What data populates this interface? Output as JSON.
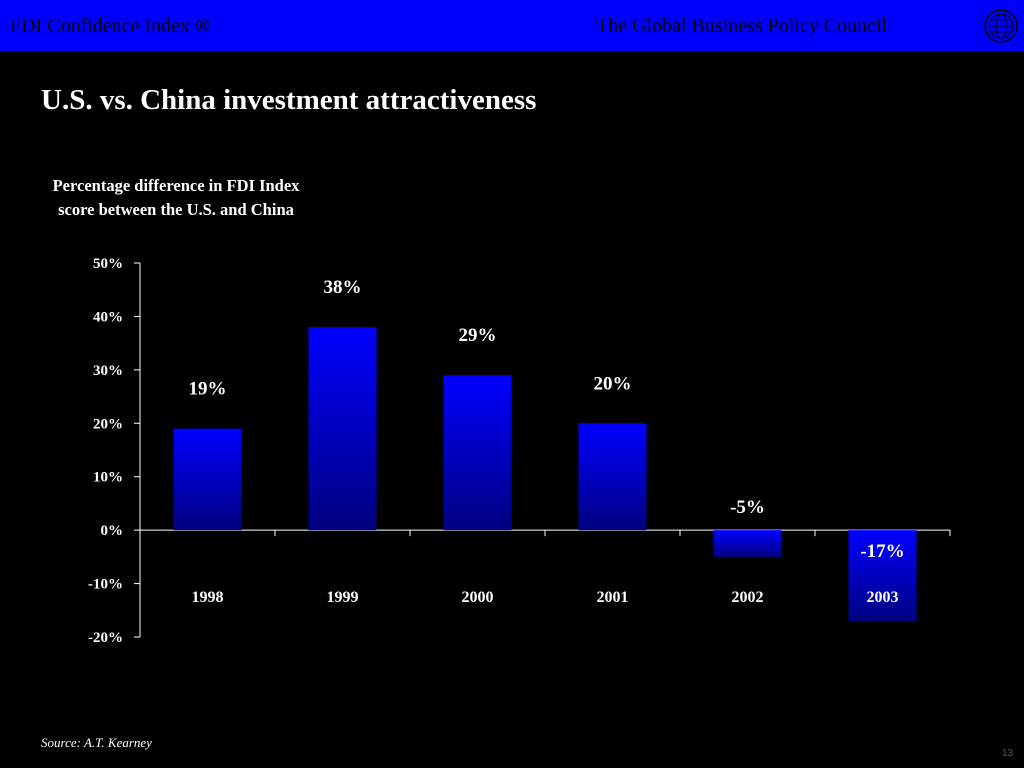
{
  "header": {
    "left_label": "FDI Confidence Index ®",
    "right_label": "The Global Business Policy Council",
    "logo_icon": "globe-seal-icon"
  },
  "slide": {
    "title": "U.S. vs. China investment attractiveness",
    "page_number": "13"
  },
  "source": "Source: A.T. Kearney",
  "colors": {
    "header_bg": "#0000ff",
    "bar_top": "#0000ff",
    "bar_bottom": "#000080",
    "background": "#000000",
    "text": "#ffffff"
  },
  "chart_data": {
    "type": "bar",
    "title": "Percentage difference in FDI Index score between the U.S. and China",
    "title_lines": [
      "Percentage difference in FDI Index",
      "score between the U.S. and China"
    ],
    "categories": [
      "1998",
      "1999",
      "2000",
      "2001",
      "2002",
      "2003"
    ],
    "values": [
      19,
      38,
      29,
      20,
      -5,
      -17
    ],
    "data_labels": [
      "19%",
      "38%",
      "29%",
      "20%",
      "-5%",
      "-17%"
    ],
    "ylim": [
      -20,
      50
    ],
    "yticks": [
      50,
      40,
      30,
      20,
      10,
      0,
      -10,
      -20
    ],
    "ytick_labels": [
      "50%",
      "40%",
      "30%",
      "20%",
      "10%",
      "0%",
      "-10%",
      "-20%"
    ],
    "xlabel": "",
    "ylabel": "",
    "grid": false,
    "legend": "none"
  }
}
